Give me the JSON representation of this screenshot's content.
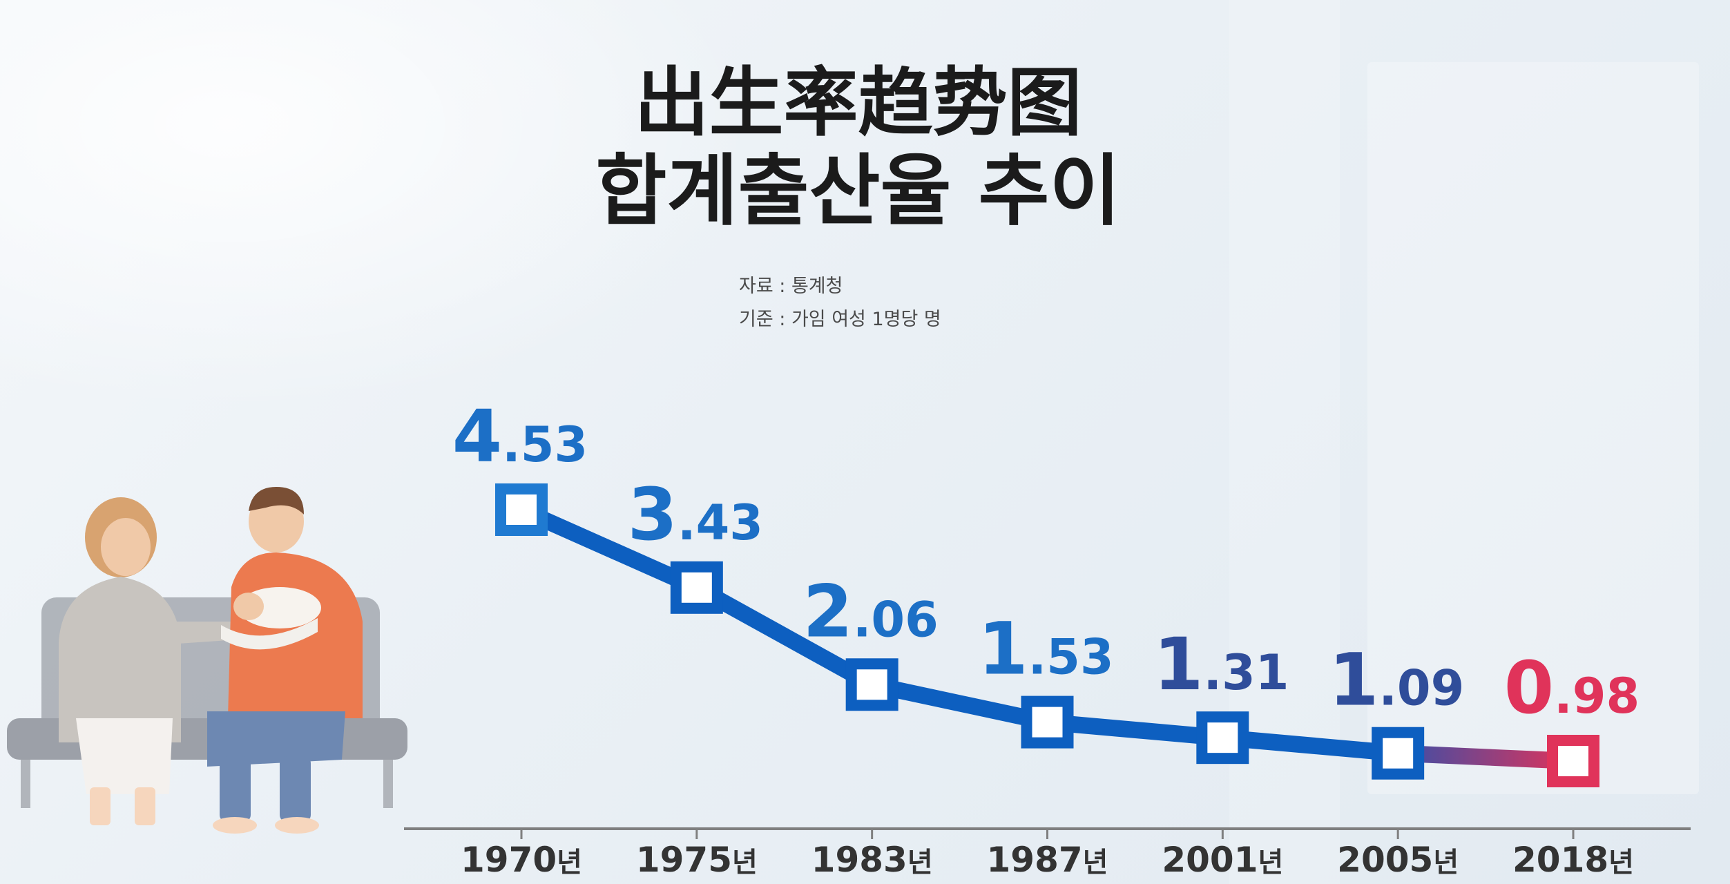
{
  "title_cn": "出生率趋势图",
  "title_kr": "합계출산율 추이",
  "source_note": "자료 : 통계청",
  "basis_note": "기준 : 가임 여성 1명당 명",
  "colors": {
    "line_blue": "#0d5fc0",
    "line_blue_light": "#1f7ad1",
    "accent_red": "#e0335a",
    "label_blue": "#1c6fc6",
    "label_navy": "#2f4d9a",
    "axis": "#777777"
  },
  "chart_data": {
    "type": "line",
    "x_label_suffix": "년",
    "categories": [
      "1970",
      "1975",
      "1983",
      "1987",
      "2001",
      "2005",
      "2018"
    ],
    "values": [
      4.53,
      3.43,
      2.06,
      1.53,
      1.31,
      1.09,
      0.98
    ],
    "value_labels": [
      "4.53",
      "3.43",
      "2.06",
      "1.53",
      "1.31",
      "1.09",
      "0.98"
    ],
    "highlight_index": 6,
    "ylim": [
      0.98,
      4.53
    ],
    "grid": false,
    "legend": "none"
  }
}
